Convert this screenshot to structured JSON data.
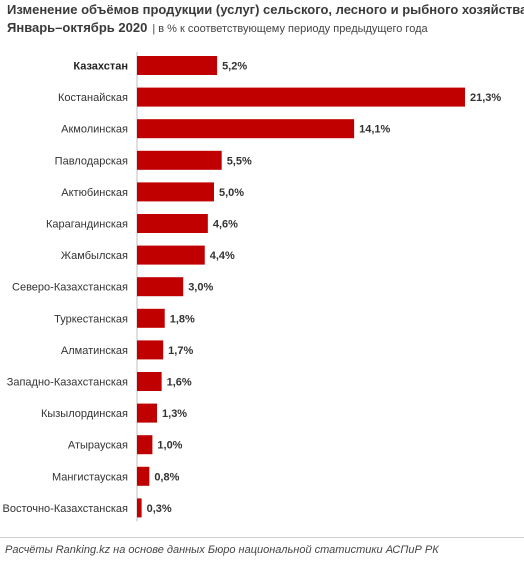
{
  "header": {
    "title": "Изменение объёмов продукции (услуг) сельского, лесного и рыбного хозяйства.",
    "subtitle": "Январь–октябрь 2020",
    "unit_note": "| в % к соответствующему периоду предыдущего года"
  },
  "footer": {
    "source": "Расчёты Ranking.kz на основе данных Бюро национальной  статистики АСПиР РК"
  },
  "colors": {
    "bar": "#c00000",
    "highlight_label": "#222222"
  },
  "chart_data": {
    "type": "bar",
    "orientation": "horizontal",
    "title": "Изменение объёмов продукции (услуг) сельского, лесного и рыбного хозяйства.",
    "subtitle": "Январь–октябрь 2020",
    "unit": "| в % к соответствующему периоду предыдущего года",
    "xlim": [
      0,
      21.3
    ],
    "grid": false,
    "legend": "none",
    "highlight_category": "Казахстан",
    "categories": [
      "Казахстан",
      "Костанайская",
      "Акмолинская",
      "Павлодарская",
      "Актюбинская",
      "Карагандинская",
      "Жамбылская",
      "Северо-Казахстанская",
      "Туркестанская",
      "Алматинская",
      "Западно-Казахстанская",
      "Кызылординская",
      "Атырауская",
      "Мангистауская",
      "Восточно-Казахстанская"
    ],
    "values": [
      5.2,
      21.3,
      14.1,
      5.5,
      5.0,
      4.6,
      4.4,
      3.0,
      1.8,
      1.7,
      1.6,
      1.3,
      1.0,
      0.8,
      0.3
    ],
    "value_labels": [
      "5,2%",
      "21,3%",
      "14,1%",
      "5,5%",
      "5,0%",
      "4,6%",
      "4,4%",
      "3,0%",
      "1,8%",
      "1,7%",
      "1,6%",
      "1,3%",
      "1,0%",
      "0,8%",
      "0,3%"
    ]
  }
}
